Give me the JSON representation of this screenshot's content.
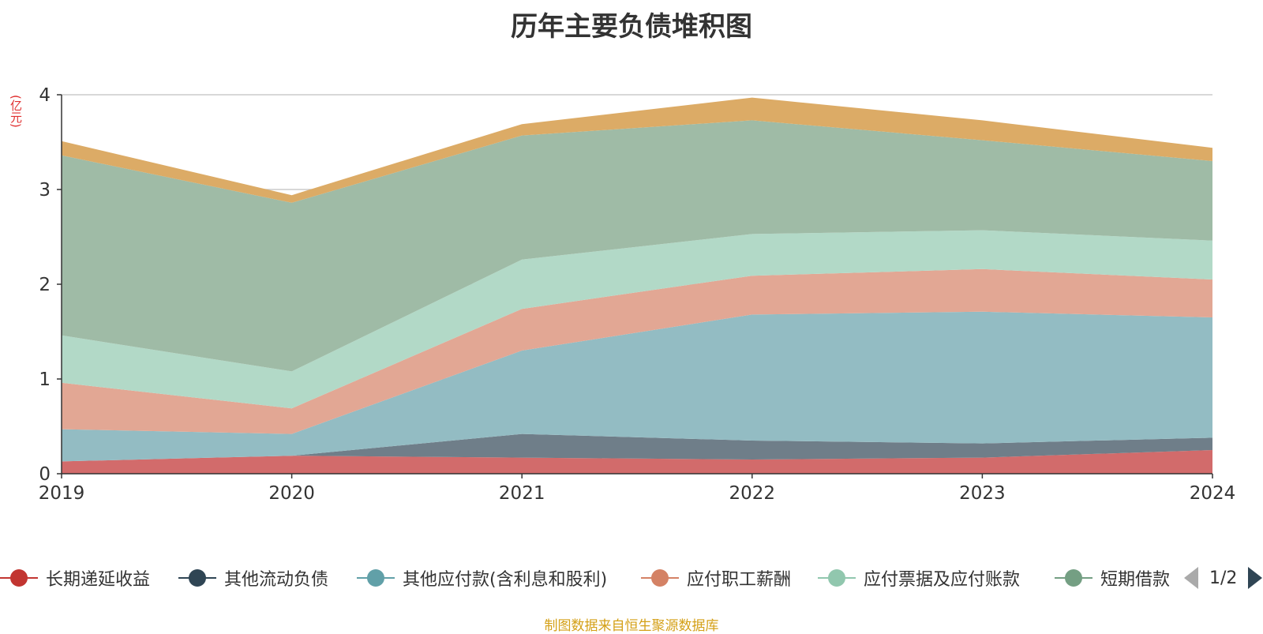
{
  "chart_data": {
    "type": "area",
    "stacked": true,
    "title": "历年主要负债堆积图",
    "ylabel": "(亿元)",
    "categories": [
      "2019",
      "2020",
      "2021",
      "2022",
      "2023",
      "2024"
    ],
    "ylim": [
      0,
      4
    ],
    "yticks": [
      "0",
      "1",
      "2",
      "3",
      "4"
    ],
    "grid": true,
    "series": [
      {
        "name": "长期递延收益",
        "color": "#d26b6b",
        "legend_color": "#c23531",
        "values": [
          0.13,
          0.19,
          0.17,
          0.15,
          0.17,
          0.25
        ]
      },
      {
        "name": "其他流动负债",
        "color": "#6f7e89",
        "legend_color": "#2f4554",
        "values": [
          0.0,
          0.0,
          0.25,
          0.2,
          0.15,
          0.13
        ]
      },
      {
        "name": "其他应付款(含利息和股利)",
        "color": "#93bcc3",
        "legend_color": "#61a0a8",
        "values": [
          0.34,
          0.23,
          0.88,
          1.33,
          1.39,
          1.27
        ]
      },
      {
        "name": "应付职工薪酬",
        "color": "#e2a794",
        "legend_color": "#d48265",
        "values": [
          0.49,
          0.27,
          0.44,
          0.41,
          0.45,
          0.4
        ]
      },
      {
        "name": "应付票据及应付账款",
        "color": "#b2d9c7",
        "legend_color": "#91c7ae",
        "values": [
          0.5,
          0.39,
          0.52,
          0.44,
          0.41,
          0.41
        ]
      },
      {
        "name": "短期借款",
        "color": "#9fbba6",
        "legend_color": "#749f83",
        "values": [
          1.9,
          1.78,
          1.31,
          1.2,
          0.95,
          0.84
        ]
      },
      {
        "name": "",
        "color": "#dcab66",
        "legend_color": "#ca8622",
        "values": [
          0.15,
          0.08,
          0.12,
          0.24,
          0.21,
          0.14
        ]
      }
    ]
  },
  "legend": {
    "visible_labels": [
      "长期递延收益",
      "其他流动负债",
      "其他应付款(含利息和股利)",
      "应付职工薪酬",
      "应付票据及应付账款",
      "短期借款"
    ],
    "page_indicator": "1/2"
  },
  "source": "制图数据来自恒生聚源数据库"
}
